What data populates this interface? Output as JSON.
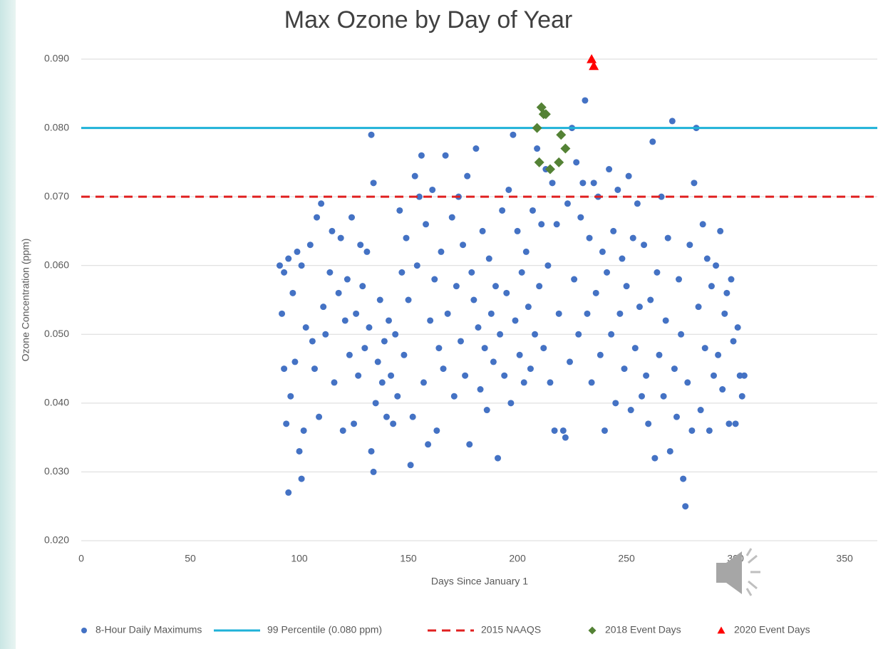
{
  "chart_data": {
    "type": "scatter",
    "title": "Max Ozone by Day of Year",
    "x_label": "Days Since January 1",
    "y_label": "Ozone Concentration (ppm)",
    "xlim": [
      0,
      365
    ],
    "ylim": [
      0.02,
      0.09
    ],
    "xticks": [
      0,
      50,
      100,
      150,
      200,
      250,
      300,
      350
    ],
    "yticks": [
      {
        "value": 0.02,
        "label": "0.020"
      },
      {
        "value": 0.03,
        "label": "0.030"
      },
      {
        "value": 0.04,
        "label": "0.040"
      },
      {
        "value": 0.05,
        "label": "0.050"
      },
      {
        "value": 0.06,
        "label": "0.060"
      },
      {
        "value": 0.07,
        "label": "0.070"
      },
      {
        "value": 0.08,
        "label": "0.080"
      },
      {
        "value": 0.09,
        "label": "0.090"
      }
    ],
    "grid": true,
    "legend": "bottom",
    "series": [
      {
        "name": "8-Hour Daily Maximums",
        "color": "#4472c4",
        "marker": "circle",
        "x": [
          91,
          92,
          93,
          93,
          94,
          95,
          95,
          96,
          97,
          98,
          99,
          100,
          101,
          101,
          102,
          103,
          105,
          106,
          107,
          108,
          109,
          110,
          111,
          112,
          114,
          115,
          116,
          118,
          119,
          120,
          121,
          122,
          123,
          124,
          125,
          126,
          127,
          128,
          129,
          130,
          131,
          132,
          133,
          133,
          134,
          134,
          135,
          136,
          137,
          138,
          139,
          140,
          141,
          142,
          143,
          144,
          145,
          146,
          147,
          148,
          149,
          150,
          151,
          152,
          153,
          154,
          155,
          156,
          157,
          158,
          159,
          160,
          161,
          162,
          163,
          164,
          165,
          166,
          167,
          168,
          170,
          171,
          172,
          173,
          174,
          175,
          176,
          177,
          178,
          179,
          180,
          181,
          182,
          183,
          184,
          185,
          186,
          187,
          188,
          189,
          190,
          191,
          192,
          193,
          194,
          195,
          196,
          197,
          198,
          199,
          200,
          201,
          202,
          203,
          204,
          205,
          206,
          207,
          208,
          209,
          210,
          211,
          212,
          213,
          214,
          215,
          216,
          217,
          218,
          219,
          220,
          221,
          222,
          223,
          224,
          225,
          226,
          227,
          228,
          229,
          230,
          231,
          232,
          233,
          234,
          235,
          236,
          237,
          238,
          239,
          240,
          241,
          242,
          243,
          244,
          245,
          246,
          247,
          248,
          249,
          250,
          251,
          252,
          253,
          254,
          255,
          256,
          257,
          258,
          259,
          260,
          261,
          262,
          263,
          264,
          265,
          266,
          267,
          268,
          269,
          270,
          271,
          272,
          273,
          274,
          275,
          276,
          277,
          278,
          279,
          280,
          281,
          282,
          283,
          284,
          285,
          286,
          287,
          288,
          289,
          290,
          291,
          292,
          293,
          294,
          295,
          296,
          297,
          298,
          299,
          300,
          301,
          302,
          303,
          304
        ],
        "values": [
          0.06,
          0.053,
          0.045,
          0.059,
          0.037,
          0.061,
          0.027,
          0.041,
          0.056,
          0.046,
          0.062,
          0.033,
          0.029,
          0.06,
          0.036,
          0.051,
          0.063,
          0.049,
          0.045,
          0.067,
          0.038,
          0.069,
          0.054,
          0.05,
          0.059,
          0.065,
          0.043,
          0.056,
          0.064,
          0.036,
          0.052,
          0.058,
          0.047,
          0.067,
          0.037,
          0.053,
          0.044,
          0.063,
          0.057,
          0.048,
          0.062,
          0.051,
          0.079,
          0.033,
          0.072,
          0.03,
          0.04,
          0.046,
          0.055,
          0.043,
          0.049,
          0.038,
          0.052,
          0.044,
          0.037,
          0.05,
          0.041,
          0.068,
          0.059,
          0.047,
          0.064,
          0.055,
          0.031,
          0.038,
          0.073,
          0.06,
          0.07,
          0.076,
          0.043,
          0.066,
          0.034,
          0.052,
          0.071,
          0.058,
          0.036,
          0.048,
          0.062,
          0.045,
          0.076,
          0.053,
          0.067,
          0.041,
          0.057,
          0.07,
          0.049,
          0.063,
          0.044,
          0.073,
          0.034,
          0.059,
          0.055,
          0.077,
          0.051,
          0.042,
          0.065,
          0.048,
          0.039,
          0.061,
          0.053,
          0.046,
          0.057,
          0.032,
          0.05,
          0.068,
          0.044,
          0.056,
          0.071,
          0.04,
          0.079,
          0.052,
          0.065,
          0.047,
          0.059,
          0.043,
          0.062,
          0.054,
          0.045,
          0.068,
          0.05,
          0.077,
          0.057,
          0.066,
          0.048,
          0.074,
          0.06,
          0.043,
          0.072,
          0.036,
          0.066,
          0.053,
          0.079,
          0.036,
          0.035,
          0.069,
          0.046,
          0.08,
          0.058,
          0.075,
          0.05,
          0.067,
          0.072,
          0.084,
          0.053,
          0.064,
          0.043,
          0.072,
          0.056,
          0.07,
          0.047,
          0.062,
          0.036,
          0.059,
          0.074,
          0.05,
          0.065,
          0.04,
          0.071,
          0.053,
          0.061,
          0.045,
          0.057,
          0.073,
          0.039,
          0.064,
          0.048,
          0.069,
          0.054,
          0.041,
          0.063,
          0.044,
          0.037,
          0.055,
          0.078,
          0.032,
          0.059,
          0.047,
          0.07,
          0.041,
          0.052,
          0.064,
          0.033,
          0.081,
          0.045,
          0.038,
          0.058,
          0.05,
          0.029,
          0.025,
          0.043,
          0.063,
          0.036,
          0.072,
          0.08,
          0.054,
          0.039,
          0.066,
          0.048,
          0.061,
          0.036,
          0.057,
          0.044,
          0.06,
          0.047,
          0.065,
          0.042,
          0.053,
          0.056,
          0.037,
          0.058,
          0.049,
          0.037,
          0.051,
          0.044,
          0.041,
          0.044
        ]
      },
      {
        "name": "99 Percentile (0.080 ppm)",
        "color": "#1fb2d8",
        "marker": "line",
        "style": "solid",
        "x": [
          0,
          365
        ],
        "values": [
          0.08,
          0.08
        ]
      },
      {
        "name": "2015 NAAQS",
        "color": "#e02020",
        "marker": "line",
        "style": "dashed",
        "x": [
          0,
          365
        ],
        "values": [
          0.07,
          0.07
        ]
      },
      {
        "name": "2018 Event Days",
        "color": "#548235",
        "marker": "diamond",
        "x": [
          209,
          210,
          211,
          212,
          213,
          215,
          219,
          220,
          222
        ],
        "values": [
          0.08,
          0.075,
          0.083,
          0.082,
          0.082,
          0.074,
          0.075,
          0.079,
          0.077
        ]
      },
      {
        "name": "2020 Event Days",
        "color": "#ff0000",
        "marker": "triangle",
        "x": [
          234,
          235
        ],
        "values": [
          0.09,
          0.089
        ]
      }
    ]
  }
}
